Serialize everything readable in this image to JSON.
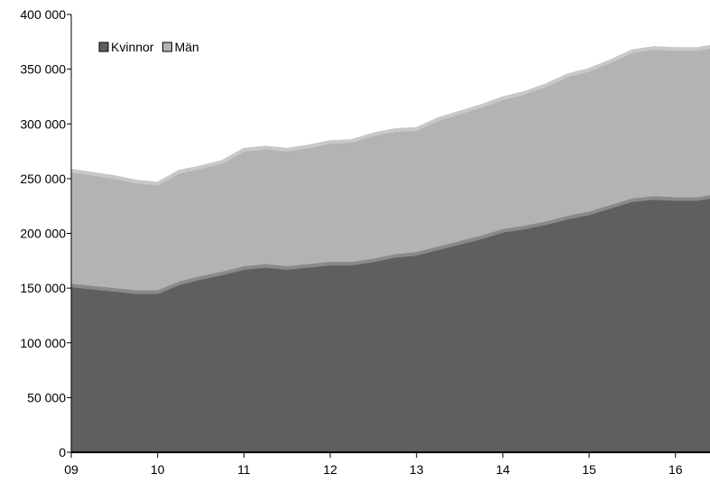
{
  "chart_data": {
    "type": "area",
    "stacked": true,
    "title": "",
    "xlabel": "",
    "ylabel": "",
    "ylim": [
      0,
      400000
    ],
    "yticks": [
      0,
      50000,
      100000,
      150000,
      200000,
      250000,
      300000,
      350000,
      400000
    ],
    "ytick_labels": [
      "0",
      "50 000",
      "100 000",
      "150 000",
      "200 000",
      "250 000",
      "300 000",
      "350 000",
      "400 000"
    ],
    "xlim": [
      9,
      16.4
    ],
    "xticks": [
      9,
      10,
      11,
      12,
      13,
      14,
      15,
      16
    ],
    "xtick_labels": [
      "09",
      "10",
      "11",
      "12",
      "13",
      "14",
      "15",
      "16"
    ],
    "grid": false,
    "legend_position": "top-left",
    "x": [
      9.0,
      9.25,
      9.5,
      9.75,
      10.0,
      10.25,
      10.5,
      10.75,
      11.0,
      11.25,
      11.5,
      11.75,
      12.0,
      12.25,
      12.5,
      12.75,
      13.0,
      13.25,
      13.5,
      13.75,
      14.0,
      14.25,
      14.5,
      14.75,
      15.0,
      15.25,
      15.5,
      15.75,
      16.0,
      16.25,
      16.4
    ],
    "series": [
      {
        "name": "Kvinnor",
        "color": "#5f5f5f",
        "values": [
          154000,
          152000,
          150000,
          148000,
          148000,
          156000,
          161000,
          165000,
          170000,
          172000,
          170000,
          172000,
          174000,
          174000,
          177000,
          181000,
          183000,
          188000,
          193000,
          198000,
          204000,
          207000,
          211000,
          216000,
          220000,
          226000,
          232000,
          234000,
          233000,
          233000,
          235000
        ]
      },
      {
        "name": "Män",
        "color": "#b3b3b3",
        "values": [
          105000,
          104000,
          103000,
          101000,
          99000,
          102000,
          101000,
          102000,
          108000,
          108000,
          108000,
          109000,
          111000,
          112000,
          115000,
          115000,
          114000,
          118000,
          119000,
          120000,
          121000,
          123000,
          126000,
          130000,
          131000,
          133000,
          136000,
          137000,
          137000,
          137000,
          137000
        ]
      }
    ]
  }
}
